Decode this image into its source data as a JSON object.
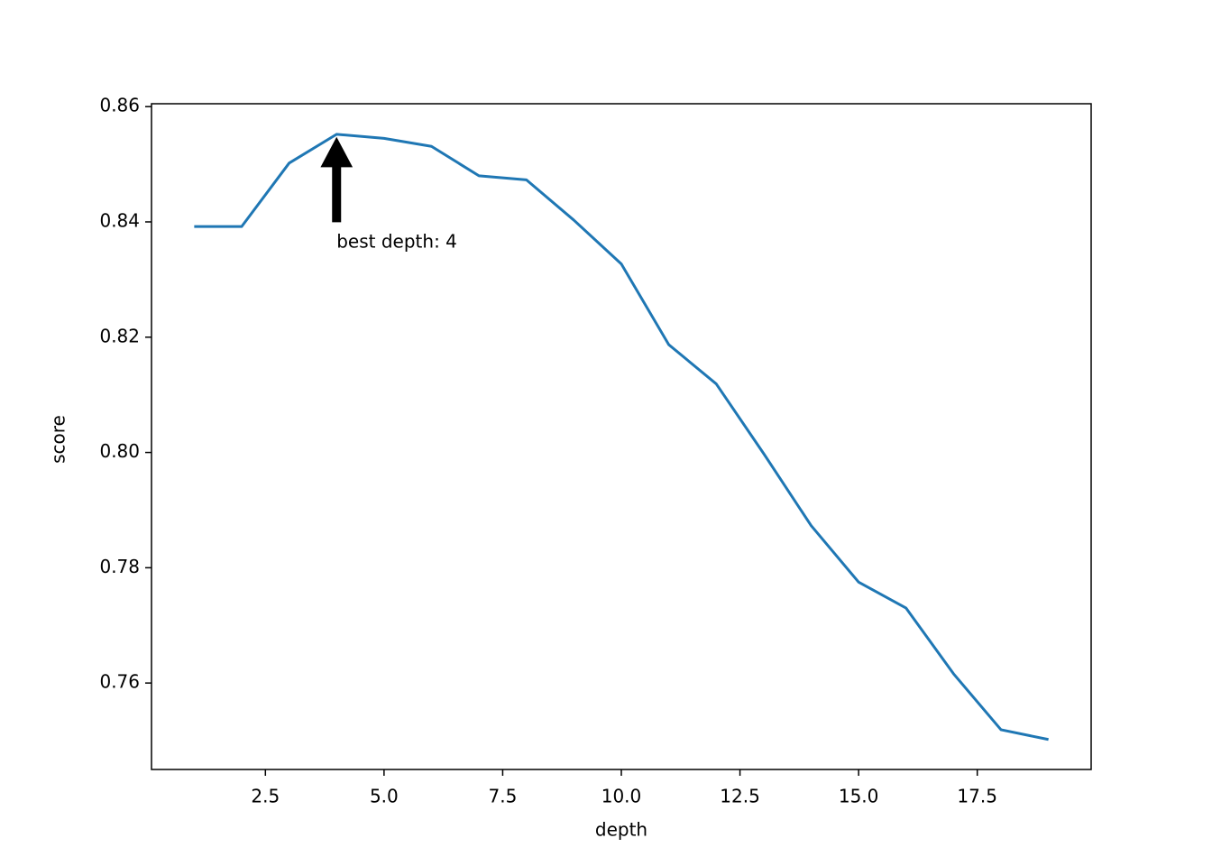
{
  "chart_data": {
    "type": "line",
    "x_label": "depth",
    "y_label": "score",
    "x": [
      1,
      2,
      3,
      4,
      5,
      6,
      7,
      8,
      9,
      10,
      11,
      12,
      13,
      14,
      15,
      16,
      17,
      18,
      19
    ],
    "series": [
      {
        "color": "#1f77b4",
        "values": [
          0.8392,
          0.8392,
          0.8502,
          0.8552,
          0.8545,
          0.8531,
          0.848,
          0.8473,
          0.8403,
          0.8327,
          0.8187,
          0.8119,
          0.7998,
          0.7873,
          0.7775,
          0.773,
          0.7616,
          0.7519,
          0.7502
        ]
      }
    ],
    "xlim": [
      0.1,
      19.9
    ],
    "xticks": [
      2.5,
      {
        "value": 5,
        "label": "5.0"
      },
      7.5,
      {
        "value": 10,
        "label": "10.0"
      },
      12.5,
      {
        "value": 15,
        "label": "15.0"
      },
      17.5
    ],
    "ylim": [
      0.745,
      0.8605
    ],
    "yticks": [
      0.76,
      0.78,
      {
        "value": 0.8,
        "label": "0.80"
      },
      0.82,
      0.84,
      0.86
    ],
    "annotation": {
      "text": "best depth: 4",
      "x": 4,
      "y": 0.8552
    }
  }
}
